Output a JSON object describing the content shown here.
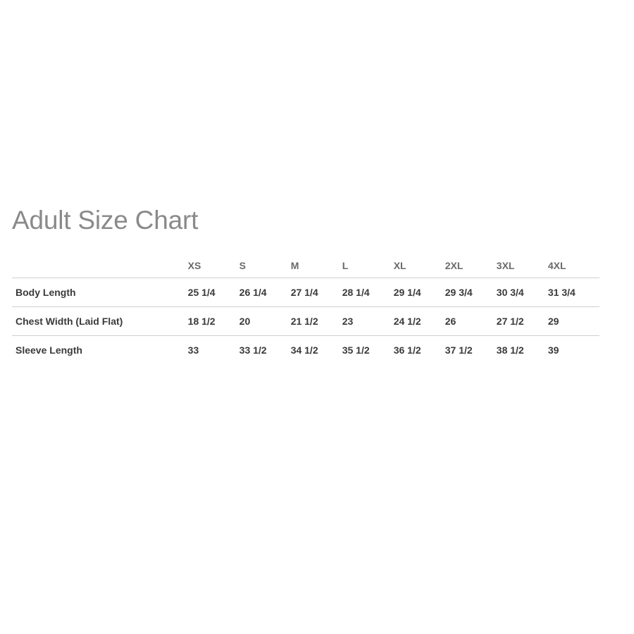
{
  "title": "Adult Size Chart",
  "sizes": [
    "XS",
    "S",
    "M",
    "L",
    "XL",
    "2XL",
    "3XL",
    "4XL"
  ],
  "rows": [
    {
      "label": "Body Length",
      "values": [
        "25 1/4",
        "26 1/4",
        "27 1/4",
        "28 1/4",
        "29 1/4",
        "29 3/4",
        "30 3/4",
        "31 3/4"
      ]
    },
    {
      "label": "Chest Width (Laid Flat)",
      "values": [
        "18 1/2",
        "20",
        "21 1/2",
        "23",
        "24 1/2",
        "26",
        "27 1/2",
        "29"
      ]
    },
    {
      "label": "Sleeve Length",
      "values": [
        "33",
        "33 1/2",
        "34 1/2",
        "35 1/2",
        "36 1/2",
        "37 1/2",
        "38 1/2",
        "39"
      ]
    }
  ]
}
